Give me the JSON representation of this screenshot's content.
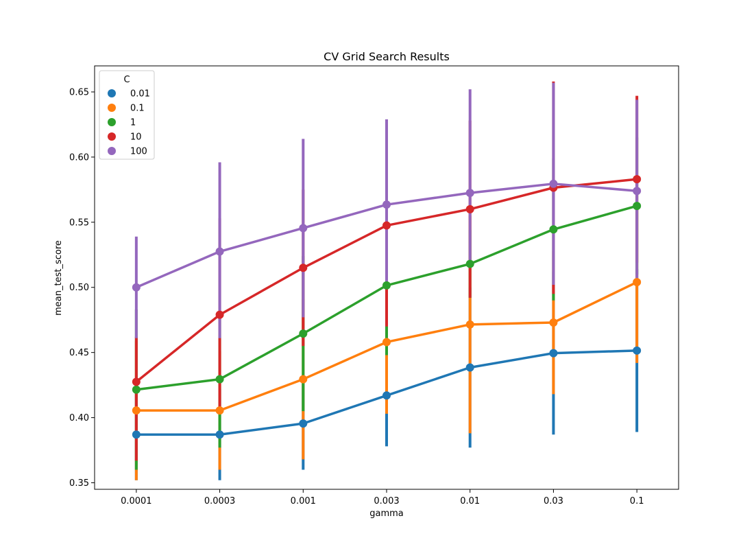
{
  "chart_data": {
    "type": "line",
    "title": "CV Grid Search Results",
    "xlabel": "gamma",
    "ylabel": "mean_test_score",
    "categories": [
      "0.0001",
      "0.0003",
      "0.001",
      "0.003",
      "0.01",
      "0.03",
      "0.1"
    ],
    "ylim": [
      0.345,
      0.67
    ],
    "yticks": [
      0.35,
      0.4,
      0.45,
      0.5,
      0.55,
      0.6,
      0.65
    ],
    "ytick_labels": [
      "0.35",
      "0.40",
      "0.45",
      "0.50",
      "0.55",
      "0.60",
      "0.65"
    ],
    "grid": false,
    "legend": {
      "title": "C",
      "placement": "top-left"
    },
    "series": [
      {
        "name": "0.01",
        "color": "#1f77b4",
        "values": [
          0.387,
          0.387,
          0.3955,
          0.417,
          0.4385,
          0.4495,
          0.4515
        ],
        "err_low": [
          0.352,
          0.352,
          0.36,
          0.378,
          0.377,
          0.387,
          0.389
        ],
        "err_high": [
          0.422,
          0.422,
          0.431,
          0.456,
          0.5,
          0.512,
          0.514
        ]
      },
      {
        "name": "0.1",
        "color": "#ff7f0e",
        "values": [
          0.4055,
          0.4055,
          0.4295,
          0.458,
          0.4715,
          0.473,
          0.504
        ],
        "err_low": [
          0.352,
          0.36,
          0.368,
          0.403,
          0.388,
          0.418,
          0.442
        ],
        "err_high": [
          0.459,
          0.451,
          0.491,
          0.513,
          0.555,
          0.528,
          0.566
        ]
      },
      {
        "name": "1",
        "color": "#2ca02c",
        "values": [
          0.4215,
          0.4295,
          0.4645,
          0.5015,
          0.518,
          0.5445,
          0.5625
        ],
        "err_low": [
          0.36,
          0.377,
          0.405,
          0.448,
          0.492,
          0.49,
          0.51
        ],
        "err_high": [
          0.483,
          0.482,
          0.524,
          0.555,
          0.544,
          0.599,
          0.615
        ]
      },
      {
        "name": "10",
        "color": "#d62728",
        "values": [
          0.4275,
          0.479,
          0.515,
          0.5475,
          0.56,
          0.5765,
          0.583
        ],
        "err_low": [
          0.367,
          0.405,
          0.455,
          0.47,
          0.492,
          0.495,
          0.519
        ],
        "err_high": [
          0.462,
          0.553,
          0.575,
          0.625,
          0.628,
          0.658,
          0.647
        ]
      },
      {
        "name": "100",
        "color": "#9467bd",
        "values": [
          0.5,
          0.5275,
          0.5455,
          0.5635,
          0.5725,
          0.5795,
          0.574
        ],
        "err_low": [
          0.461,
          0.461,
          0.477,
          0.499,
          0.517,
          0.502,
          0.504
        ],
        "err_high": [
          0.539,
          0.596,
          0.614,
          0.629,
          0.652,
          0.657,
          0.644
        ]
      }
    ]
  }
}
